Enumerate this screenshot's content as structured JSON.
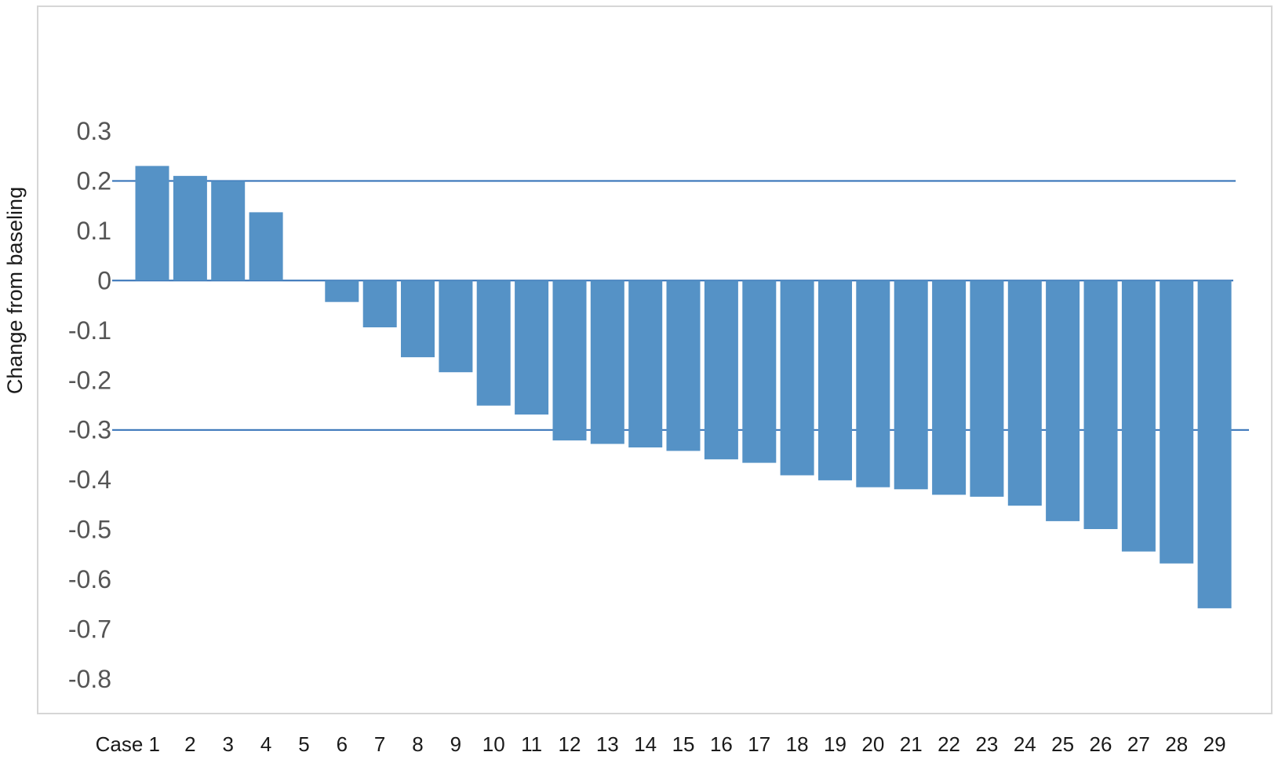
{
  "chart_data": {
    "type": "bar",
    "title": "",
    "xlabel": "",
    "ylabel": "Change from baseling",
    "ylim": [
      -0.8,
      0.3
    ],
    "yticks": [
      "0.3",
      "0.2",
      "0.1",
      "0",
      "-0.1",
      "-0.2",
      "-0.3",
      "-0.4",
      "-0.5",
      "-0.6",
      "-0.7",
      "-0.8"
    ],
    "categories": [
      "Case 1",
      "2",
      "3",
      "4",
      "5",
      "6",
      "7",
      "8",
      "9",
      "10",
      "11",
      "12",
      "13",
      "14",
      "15",
      "16",
      "17",
      "18",
      "19",
      "20",
      "21",
      "22",
      "23",
      "24",
      "25",
      "26",
      "27",
      "28",
      "29"
    ],
    "values": [
      0.23,
      0.21,
      0.2,
      0.137,
      0,
      -0.043,
      -0.094,
      -0.154,
      -0.184,
      -0.251,
      -0.269,
      -0.321,
      -0.328,
      -0.335,
      -0.342,
      -0.359,
      -0.366,
      -0.391,
      -0.401,
      -0.415,
      -0.419,
      -0.43,
      -0.434,
      -0.452,
      -0.483,
      -0.499,
      -0.544,
      -0.568,
      -0.658
    ],
    "reference_lines": [
      0.2,
      0,
      -0.3
    ],
    "grid": false,
    "legend": "none",
    "colors": {
      "bar": "#5592c6",
      "reference_line": "#2e6db5",
      "frame": "#d6d6d6",
      "tick_label": "#555555",
      "category_label": "#1a1a1a",
      "axis_label": "#1a1a1a"
    }
  }
}
